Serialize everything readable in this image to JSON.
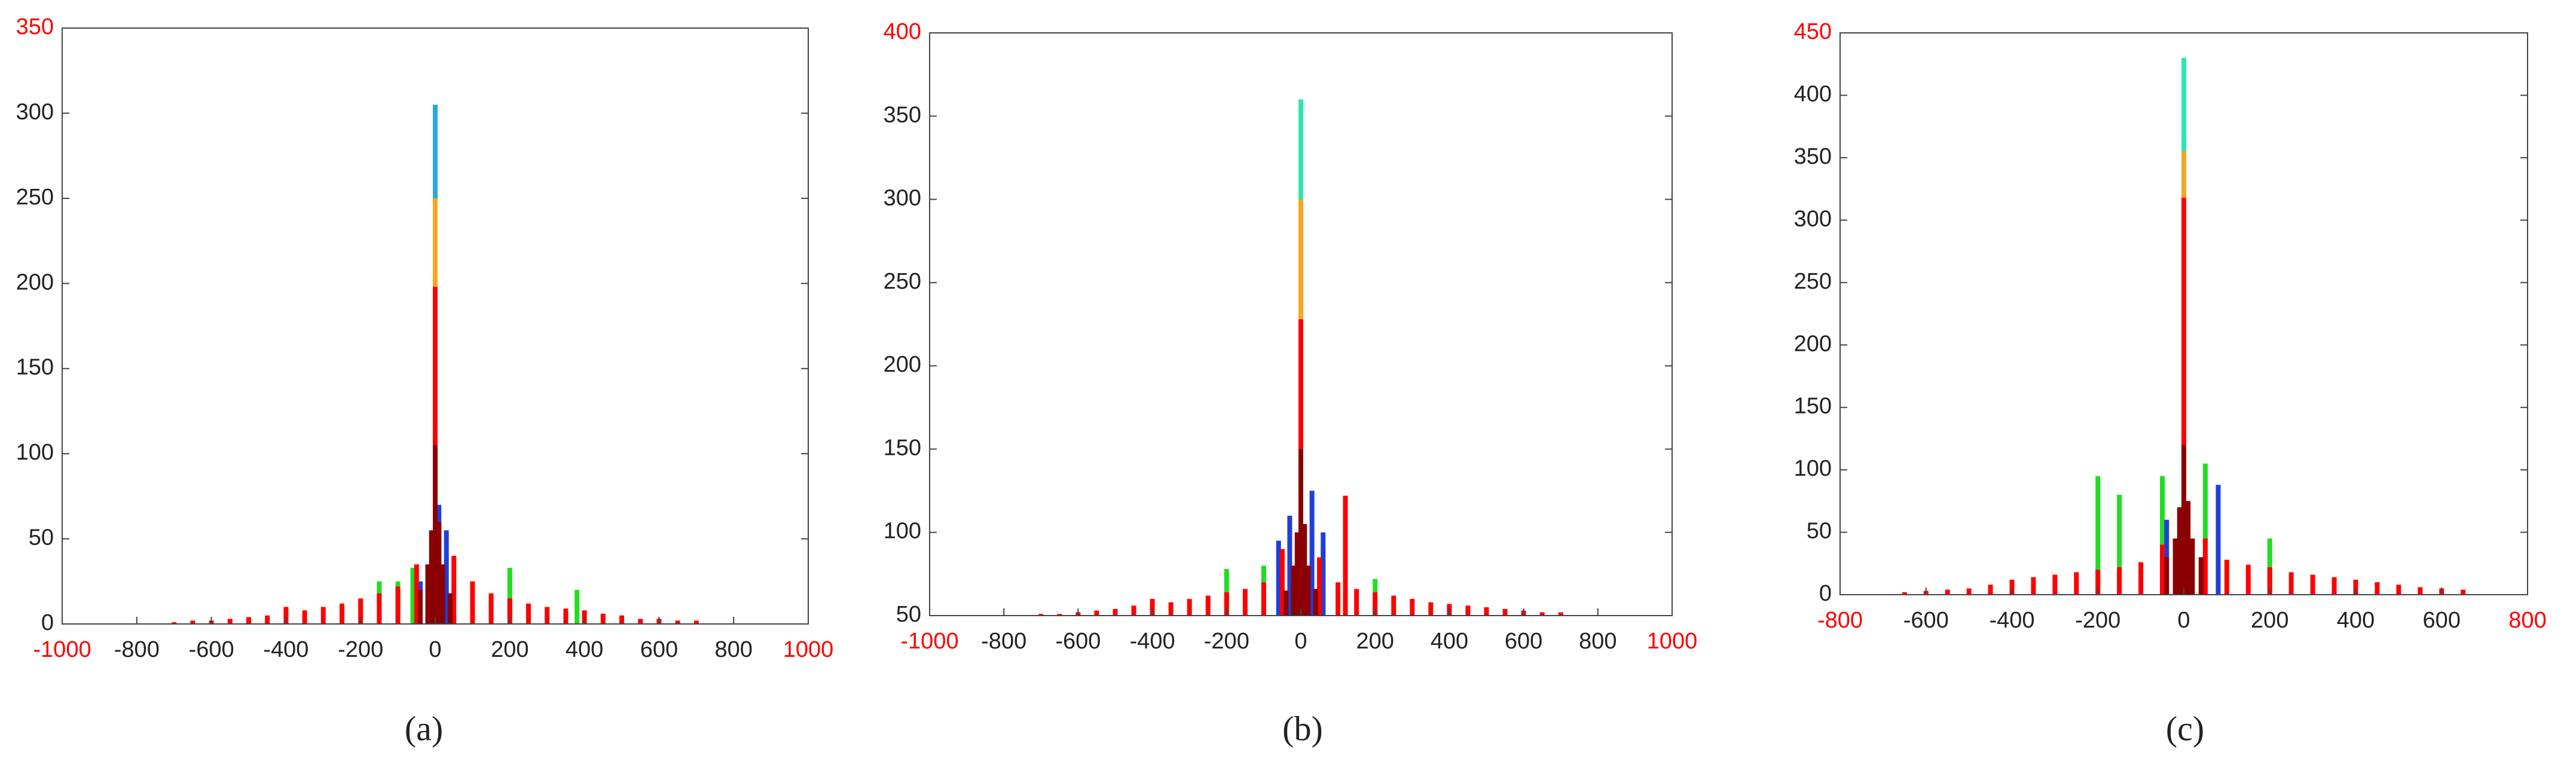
{
  "chart_data": [
    {
      "type": "bar",
      "caption": "(a)",
      "xlim": [
        -1000,
        1000
      ],
      "ylim": [
        0,
        350
      ],
      "xticks": [
        -1000,
        -800,
        -600,
        -400,
        -200,
        0,
        200,
        400,
        600,
        800,
        1000
      ],
      "yticks": [
        0,
        50,
        100,
        150,
        200,
        250,
        300,
        350
      ],
      "limit_tick_color": "#ff0000",
      "series": [
        {
          "color": "#29a8e0",
          "x": [
            0
          ],
          "values": [
            305
          ]
        },
        {
          "color": "#f5a623",
          "x": [
            0
          ],
          "values": [
            250
          ]
        },
        {
          "color": "#22dd22",
          "x": [
            -150,
            -100,
            -60,
            10,
            200,
            380
          ],
          "values": [
            25,
            25,
            33,
            20,
            33,
            20
          ]
        },
        {
          "color": "#1f3fd8",
          "x": [
            -40,
            10,
            30
          ],
          "values": [
            25,
            70,
            55
          ]
        },
        {
          "color": "#ff0000",
          "x": [
            -700,
            -650,
            -600,
            -550,
            -500,
            -450,
            -400,
            -350,
            -300,
            -250,
            -200,
            -150,
            -100,
            -50,
            0,
            50,
            100,
            150,
            200,
            250,
            300,
            350,
            400,
            450,
            500,
            550,
            600,
            650,
            700
          ],
          "values": [
            1,
            2,
            2,
            3,
            4,
            5,
            10,
            8,
            10,
            12,
            15,
            18,
            22,
            35,
            198,
            40,
            25,
            18,
            15,
            12,
            10,
            9,
            8,
            6,
            5,
            3,
            3,
            2,
            2
          ]
        },
        {
          "color": "#8b0000",
          "x": [
            -40,
            -20,
            -10,
            0,
            10,
            20,
            40
          ],
          "values": [
            20,
            35,
            55,
            105,
            60,
            35,
            18
          ]
        }
      ]
    },
    {
      "type": "bar",
      "caption": "(b)",
      "xlim": [
        -1000,
        1000
      ],
      "ylim": [
        50,
        400
      ],
      "xticks": [
        -1000,
        -800,
        -600,
        -400,
        -200,
        0,
        200,
        400,
        600,
        800,
        1000
      ],
      "yticks": [
        50,
        100,
        150,
        200,
        250,
        300,
        350,
        400
      ],
      "limit_tick_color": "#ff0000",
      "series": [
        {
          "color": "#2ee6b0",
          "x": [
            0
          ],
          "values": [
            360
          ]
        },
        {
          "color": "#f5a623",
          "x": [
            0
          ],
          "values": [
            300
          ]
        },
        {
          "color": "#22dd22",
          "x": [
            -200,
            -100,
            60,
            200
          ],
          "values": [
            78,
            80,
            90,
            72
          ]
        },
        {
          "color": "#1f3fd8",
          "x": [
            -60,
            -30,
            0,
            30,
            60
          ],
          "values": [
            95,
            110,
            170,
            125,
            100
          ]
        },
        {
          "color": "#ff0000",
          "x": [
            -700,
            -650,
            -600,
            -550,
            -500,
            -450,
            -400,
            -350,
            -300,
            -250,
            -200,
            -150,
            -100,
            -50,
            0,
            50,
            100,
            120,
            150,
            200,
            250,
            300,
            350,
            400,
            450,
            500,
            550,
            600,
            650,
            700
          ],
          "values": [
            51,
            51,
            52,
            53,
            54,
            56,
            60,
            58,
            60,
            62,
            64,
            66,
            70,
            90,
            228,
            85,
            70,
            122,
            66,
            64,
            62,
            60,
            58,
            57,
            56,
            55,
            54,
            53,
            52,
            52
          ]
        },
        {
          "color": "#8b0000",
          "x": [
            -40,
            -20,
            -10,
            0,
            10,
            20,
            40
          ],
          "values": [
            65,
            80,
            100,
            150,
            105,
            80,
            66
          ]
        }
      ]
    },
    {
      "type": "bar",
      "caption": "(c)",
      "xlim": [
        -800,
        800
      ],
      "ylim": [
        0,
        450
      ],
      "xticks": [
        -800,
        -600,
        -400,
        -200,
        0,
        200,
        400,
        600,
        800
      ],
      "yticks": [
        0,
        50,
        100,
        150,
        200,
        250,
        300,
        350,
        400,
        450
      ],
      "limit_tick_color": "#ff0000",
      "series": [
        {
          "color": "#2ee6b0",
          "x": [
            0
          ],
          "values": [
            430
          ]
        },
        {
          "color": "#f5a623",
          "x": [
            0
          ],
          "values": [
            355
          ]
        },
        {
          "color": "#22dd22",
          "x": [
            -200,
            -150,
            -50,
            50,
            200
          ],
          "values": [
            95,
            80,
            95,
            105,
            45
          ]
        },
        {
          "color": "#1f3fd8",
          "x": [
            -40,
            0,
            80
          ],
          "values": [
            60,
            190,
            88
          ]
        },
        {
          "color": "#ff0000",
          "x": [
            -650,
            -600,
            -550,
            -500,
            -450,
            -400,
            -350,
            -300,
            -250,
            -200,
            -150,
            -100,
            -50,
            0,
            50,
            100,
            150,
            200,
            250,
            300,
            350,
            400,
            450,
            500,
            550,
            600,
            650
          ],
          "values": [
            2,
            3,
            4,
            5,
            8,
            12,
            14,
            16,
            18,
            20,
            22,
            26,
            40,
            318,
            45,
            28,
            24,
            22,
            18,
            16,
            14,
            12,
            10,
            8,
            6,
            5,
            4
          ]
        },
        {
          "color": "#8b0000",
          "x": [
            -40,
            -20,
            -10,
            0,
            10,
            20,
            40
          ],
          "values": [
            30,
            45,
            70,
            120,
            75,
            45,
            30
          ]
        }
      ]
    }
  ]
}
